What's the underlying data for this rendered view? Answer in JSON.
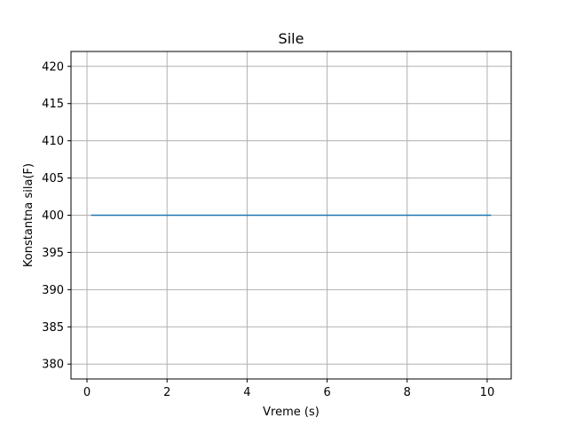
{
  "chart_data": {
    "type": "line",
    "title": "Sile",
    "xlabel": "Vreme (s)",
    "ylabel": "Konstantna sila(F)",
    "xlim": [
      -0.4,
      10.6
    ],
    "ylim": [
      378,
      422
    ],
    "x_ticks": [
      0,
      2,
      4,
      6,
      8,
      10
    ],
    "y_ticks": [
      380,
      385,
      390,
      395,
      400,
      405,
      410,
      415,
      420
    ],
    "grid": true,
    "series": [
      {
        "x": [
          0.1,
          10.1
        ],
        "y": [
          400,
          400
        ],
        "color": "#1f77b4"
      }
    ]
  },
  "colors": {
    "grid": "#b0b0b0",
    "axes": "#000000",
    "background": "#ffffff"
  }
}
